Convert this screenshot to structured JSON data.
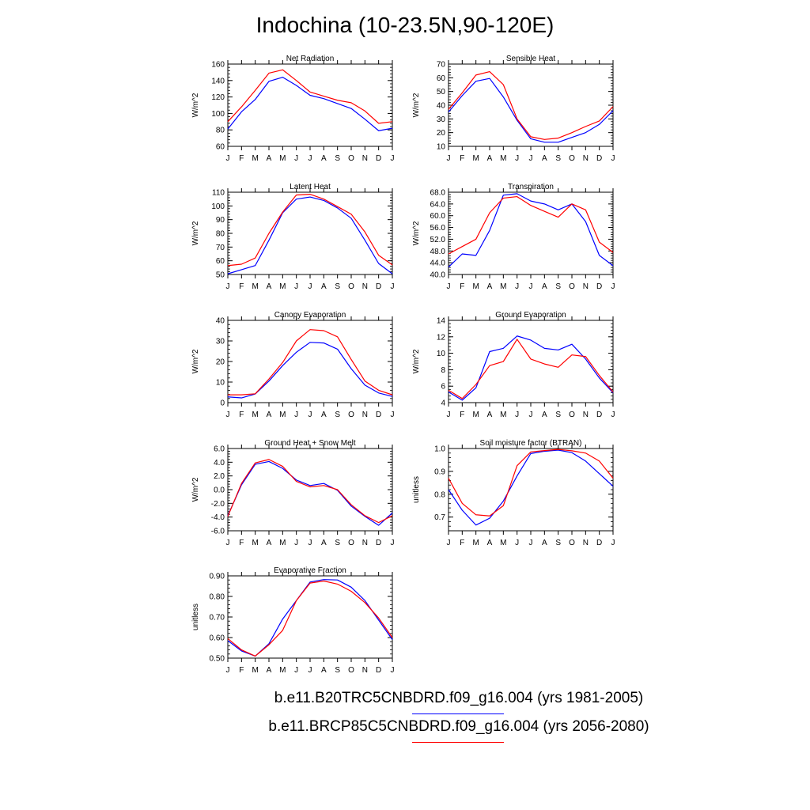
{
  "title": "Indochina (10-23.5N,90-120E)",
  "legend": [
    {
      "label": "b.e11.B20TRC5CNBDRD.f09_g16.004 (yrs 1981-2005)",
      "color": "#0000ff"
    },
    {
      "label": "b.e11.BRCP85C5CNBDRD.f09_g16.004 (yrs 2056-2080)",
      "color": "#ff0000"
    }
  ],
  "chart_data": [
    {
      "type": "line",
      "title": "Net Radiation",
      "ylabel": "W/m^2",
      "categories": [
        "J",
        "F",
        "M",
        "A",
        "M",
        "J",
        "J",
        "A",
        "S",
        "O",
        "N",
        "D",
        "J"
      ],
      "ylim": [
        60,
        160
      ],
      "yticks": [
        "60",
        "80",
        "100",
        "120",
        "140",
        "160"
      ],
      "series": [
        {
          "color": "#0000ff",
          "values": [
            81,
            102,
            117,
            139,
            144,
            134,
            122,
            118,
            112,
            106,
            93,
            79,
            82
          ]
        },
        {
          "color": "#ff0000",
          "values": [
            90,
            108,
            128,
            149,
            153,
            140,
            126,
            121,
            116,
            113,
            103,
            88,
            90
          ]
        }
      ]
    },
    {
      "type": "line",
      "title": "Sensible Heat",
      "ylabel": "W/m^2",
      "categories": [
        "J",
        "F",
        "M",
        "A",
        "M",
        "J",
        "J",
        "A",
        "S",
        "O",
        "N",
        "D",
        "J"
      ],
      "ylim": [
        10,
        70
      ],
      "yticks": [
        "10",
        "20",
        "30",
        "40",
        "50",
        "60",
        "70"
      ],
      "series": [
        {
          "color": "#0000ff",
          "values": [
            35,
            47,
            57.5,
            59.5,
            46,
            29,
            15.5,
            13,
            13,
            16.5,
            20,
            26,
            36
          ]
        },
        {
          "color": "#ff0000",
          "values": [
            37,
            49,
            62,
            64.5,
            55,
            30,
            17,
            15,
            16,
            20,
            24.5,
            28.5,
            39
          ]
        }
      ]
    },
    {
      "type": "line",
      "title": "Latent Heat",
      "ylabel": "W/m^2",
      "categories": [
        "J",
        "F",
        "M",
        "A",
        "M",
        "J",
        "J",
        "A",
        "S",
        "O",
        "N",
        "D",
        "J"
      ],
      "ylim": [
        50,
        110
      ],
      "yticks": [
        "50",
        "60",
        "70",
        "80",
        "90",
        "100",
        "110"
      ],
      "series": [
        {
          "color": "#0000ff",
          "values": [
            50.5,
            53.5,
            56.5,
            75,
            95,
            105,
            106.5,
            104,
            98.5,
            91,
            75,
            58,
            50.5
          ]
        },
        {
          "color": "#ff0000",
          "values": [
            56.5,
            57.5,
            62,
            80,
            95.5,
            108,
            108.5,
            105,
            99.5,
            94,
            81,
            64,
            57
          ]
        }
      ]
    },
    {
      "type": "line",
      "title": "Transpiration",
      "ylabel": "W/m^2",
      "categories": [
        "J",
        "F",
        "M",
        "A",
        "M",
        "J",
        "J",
        "A",
        "S",
        "O",
        "N",
        "D",
        "J"
      ],
      "ylim": [
        40,
        68
      ],
      "yticks": [
        "40.0",
        "44.0",
        "48.0",
        "52.0",
        "56.0",
        "60.0",
        "64.0",
        "68.0"
      ],
      "series": [
        {
          "color": "#0000ff",
          "values": [
            42.5,
            47,
            46.5,
            55,
            67,
            67.5,
            65,
            64,
            62,
            64,
            58,
            46.5,
            43
          ]
        },
        {
          "color": "#ff0000",
          "values": [
            47,
            49.5,
            52,
            61,
            66,
            66.5,
            63.5,
            61.5,
            59.5,
            64,
            62,
            51,
            47.5
          ]
        }
      ]
    },
    {
      "type": "line",
      "title": "Canopy Evaporation",
      "ylabel": "W/m^2",
      "categories": [
        "J",
        "F",
        "M",
        "A",
        "M",
        "J",
        "J",
        "A",
        "S",
        "O",
        "N",
        "D",
        "J"
      ],
      "ylim": [
        0,
        40
      ],
      "yticks": [
        "0",
        "10",
        "20",
        "30",
        "40"
      ],
      "series": [
        {
          "color": "#0000ff",
          "values": [
            2.8,
            2.3,
            4.2,
            10.5,
            18,
            24.5,
            29.3,
            29,
            26,
            16.5,
            8.5,
            4.7,
            3
          ]
        },
        {
          "color": "#ff0000",
          "values": [
            3.8,
            3.8,
            4.3,
            11.5,
            19.5,
            30,
            35.5,
            35,
            32,
            21,
            10.5,
            6,
            3.8
          ]
        }
      ]
    },
    {
      "type": "line",
      "title": "Ground Evaporation",
      "ylabel": "W/m^2",
      "categories": [
        "J",
        "F",
        "M",
        "A",
        "M",
        "J",
        "J",
        "A",
        "S",
        "O",
        "N",
        "D",
        "J"
      ],
      "ylim": [
        4,
        14
      ],
      "yticks": [
        "4",
        "6",
        "8",
        "10",
        "12",
        "14"
      ],
      "series": [
        {
          "color": "#0000ff",
          "values": [
            5.3,
            4.3,
            5.8,
            10.2,
            10.6,
            12.1,
            11.6,
            10.6,
            10.4,
            11.1,
            9.3,
            7,
            5.2
          ]
        },
        {
          "color": "#ff0000",
          "values": [
            5.5,
            4.5,
            6.2,
            8.5,
            9,
            11.7,
            9.3,
            8.7,
            8.3,
            9.8,
            9.6,
            7.3,
            5.3
          ]
        }
      ]
    },
    {
      "type": "line",
      "title": "Ground Heat + Snow Melt",
      "ylabel": "W/m^2",
      "categories": [
        "J",
        "F",
        "M",
        "A",
        "M",
        "J",
        "J",
        "A",
        "S",
        "O",
        "N",
        "D",
        "J"
      ],
      "ylim": [
        -6,
        6
      ],
      "yticks": [
        "-6.0",
        "-4.0",
        "-2.0",
        "0.0",
        "2.0",
        "4.0",
        "6.0"
      ],
      "series": [
        {
          "color": "#0000ff",
          "values": [
            -3.8,
            0.7,
            3.7,
            4.1,
            3.1,
            1.4,
            0.6,
            0.9,
            -0.1,
            -2.4,
            -3.9,
            -5.2,
            -3.4
          ]
        },
        {
          "color": "#ff0000",
          "values": [
            -3.9,
            0.9,
            3.9,
            4.4,
            3.4,
            1.2,
            0.4,
            0.6,
            0,
            -2.2,
            -3.8,
            -4.8,
            -3.8
          ]
        }
      ]
    },
    {
      "type": "line",
      "title": "Soil moisture factor (BTRAN)",
      "ylabel": "unitless",
      "categories": [
        "J",
        "F",
        "M",
        "A",
        "M",
        "J",
        "J",
        "A",
        "S",
        "O",
        "N",
        "D",
        "J"
      ],
      "ylim": [
        0.64,
        1.0
      ],
      "yticks": [
        "0.7",
        "0.8",
        "0.9",
        "1.0"
      ],
      "ytick_values": [
        0.7,
        0.8,
        0.9,
        1.0
      ],
      "series": [
        {
          "color": "#0000ff",
          "values": [
            0.82,
            0.73,
            0.665,
            0.695,
            0.77,
            0.88,
            0.978,
            0.988,
            0.993,
            0.982,
            0.945,
            0.89,
            0.835
          ]
        },
        {
          "color": "#ff0000",
          "values": [
            0.87,
            0.76,
            0.71,
            0.705,
            0.75,
            0.925,
            0.985,
            0.991,
            0.996,
            0.99,
            0.98,
            0.945,
            0.87
          ]
        }
      ]
    },
    {
      "type": "line",
      "title": "Evaporative Fraction",
      "ylabel": "unitless",
      "categories": [
        "J",
        "F",
        "M",
        "A",
        "M",
        "J",
        "J",
        "A",
        "S",
        "O",
        "N",
        "D",
        "J"
      ],
      "ylim": [
        0.5,
        0.9
      ],
      "yticks": [
        "0.50",
        "0.60",
        "0.70",
        "0.80",
        "0.90"
      ],
      "series": [
        {
          "color": "#0000ff",
          "values": [
            0.585,
            0.535,
            0.51,
            0.57,
            0.69,
            0.78,
            0.87,
            0.882,
            0.88,
            0.845,
            0.78,
            0.685,
            0.59
          ]
        },
        {
          "color": "#ff0000",
          "values": [
            0.595,
            0.54,
            0.51,
            0.565,
            0.635,
            0.78,
            0.865,
            0.875,
            0.86,
            0.825,
            0.77,
            0.695,
            0.6
          ]
        }
      ]
    }
  ]
}
